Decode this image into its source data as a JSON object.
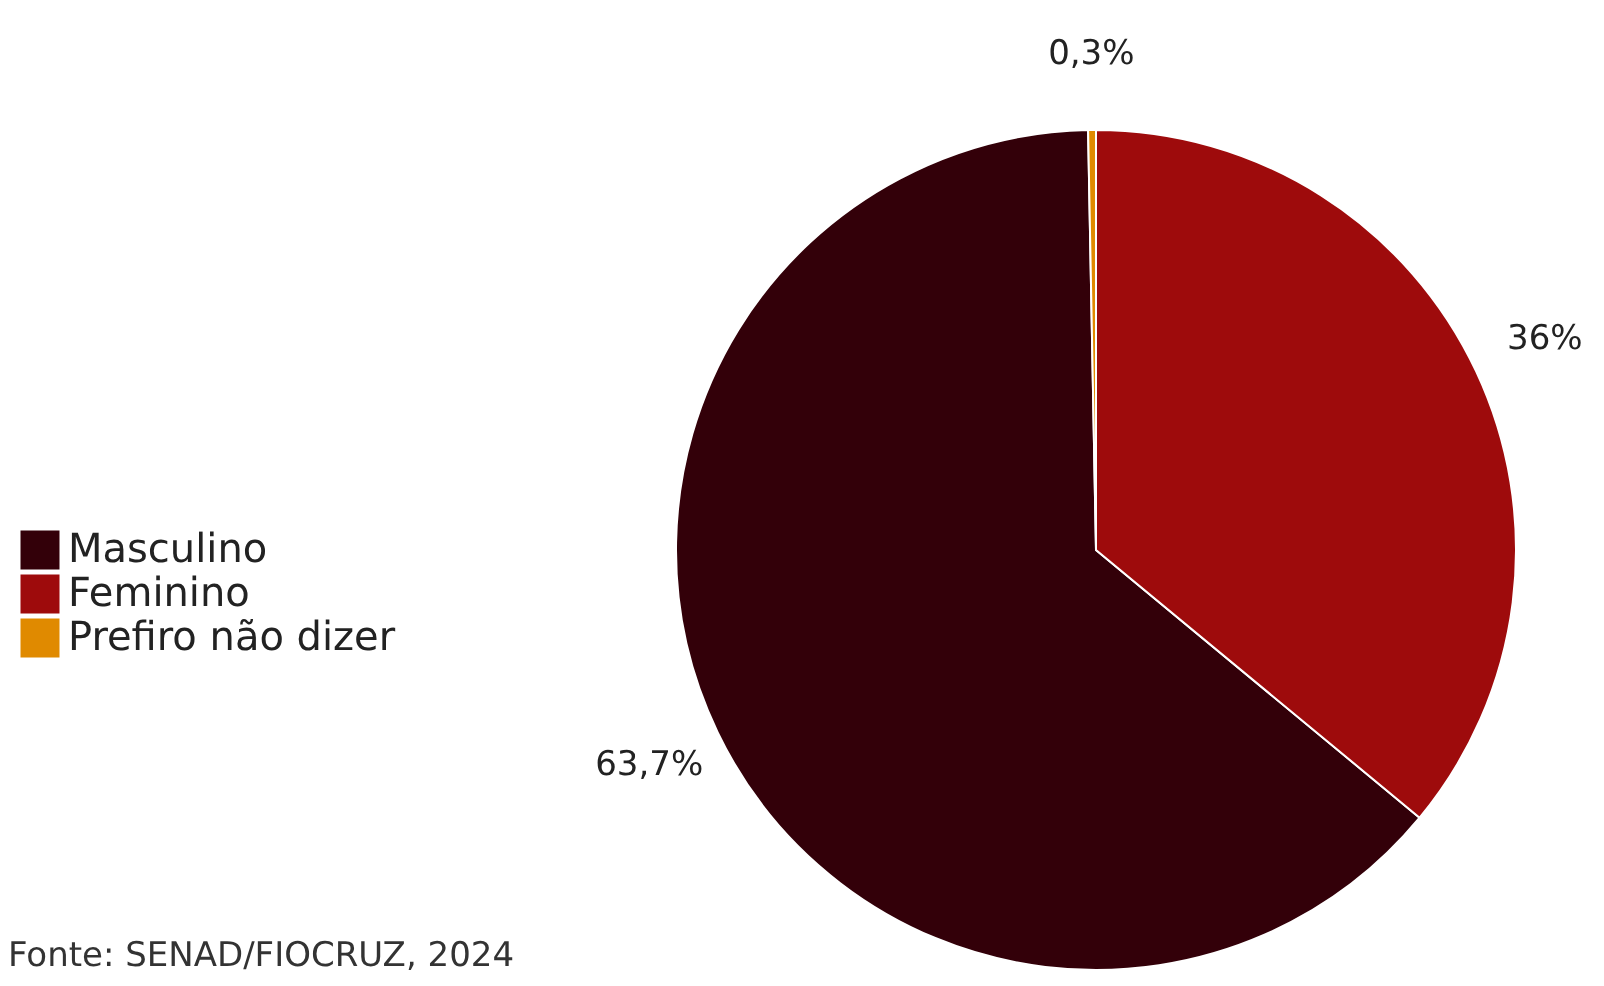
{
  "chart_data": {
    "type": "pie",
    "categories": [
      "Masculino",
      "Feminino",
      "Prefiro não dizer"
    ],
    "values": [
      63.7,
      36,
      0.3
    ],
    "colors": [
      "#330009",
      "#9e0b0c",
      "#e08a00"
    ],
    "value_labels": [
      "63,7%",
      "36%",
      "0,3%"
    ],
    "legend": "left",
    "annotations": [
      "Fonte: SENAD/FIOCRUZ, 2024"
    ]
  }
}
